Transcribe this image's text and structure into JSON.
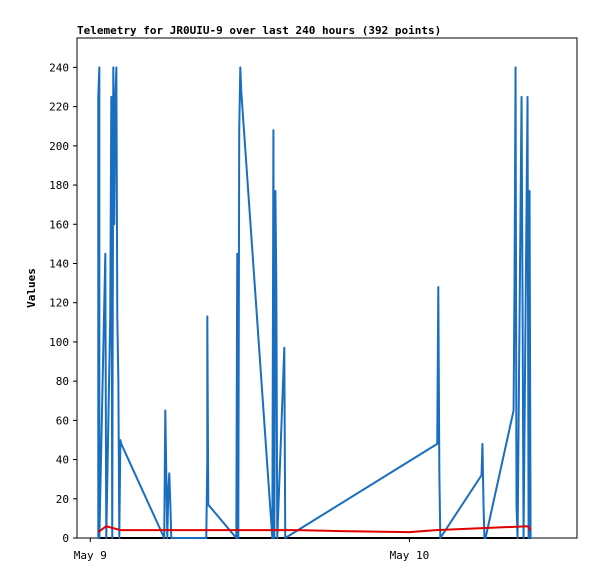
{
  "chart_data": {
    "type": "line",
    "title": "Telemetry for JR0UIU-9 over last 240 hours (392 points)",
    "y_label": "Values",
    "xlim": [
      -1,
      36.6
    ],
    "xticks": [
      {
        "value": 0,
        "label": "May 9"
      },
      {
        "value": 24,
        "label": "May 10"
      }
    ],
    "ylim": [
      0,
      255
    ],
    "yticks": [
      0,
      20,
      40,
      60,
      80,
      100,
      120,
      140,
      160,
      180,
      200,
      220,
      240
    ],
    "series": [
      {
        "color": "#000000",
        "x": [
          0.6,
          33.11
        ],
        "values": [
          0,
          0
        ]
      },
      {
        "color": "#1a6ec0",
        "x": [
          0.6,
          0.6,
          0.68,
          0.68,
          1.13,
          1.2,
          1.5,
          1.58,
          1.65,
          1.73,
          1.8,
          1.88,
          1.96,
          2.03,
          2.11,
          2.18,
          2.26,
          2.33,
          5.56,
          5.64,
          5.79,
          5.87,
          5.94,
          6.02,
          6.09,
          8.72,
          8.8,
          8.8,
          8.87,
          10.98,
          11.05,
          11.13,
          11.2,
          11.28,
          11.35,
          13.69,
          13.77,
          13.84,
          13.92,
          13.99,
          14.06,
          14.59,
          14.66,
          26.09,
          26.17,
          26.25,
          26.32,
          29.42,
          29.49,
          29.57,
          29.64,
          29.72,
          31.83,
          31.9,
          31.98,
          32.05,
          32.13,
          32.43,
          32.51,
          32.58,
          32.88,
          32.96,
          33.03,
          33.11
        ],
        "values": [
          0,
          225,
          240,
          0,
          145,
          0,
          113,
          225,
          0,
          240,
          160,
          225,
          240,
          113,
          80,
          0,
          50,
          48,
          0,
          65,
          0,
          25,
          33,
          17,
          0,
          0,
          40,
          113,
          17,
          0,
          145,
          0,
          208,
          240,
          228,
          0,
          208,
          0,
          177,
          128,
          0,
          97,
          0,
          48,
          128,
          32,
          0,
          32,
          48,
          17,
          0,
          0,
          65,
          128,
          240,
          17,
          0,
          225,
          113,
          0,
          225,
          0,
          177,
          0
        ]
      },
      {
        "color": "#e00000",
        "x": [
          0.6,
          1.2,
          2.3,
          15.6,
          18.9,
          24,
          26,
          32.9,
          33.11
        ],
        "values": [
          3,
          6,
          4,
          4,
          3.5,
          3,
          4,
          6,
          4
        ]
      }
    ]
  }
}
